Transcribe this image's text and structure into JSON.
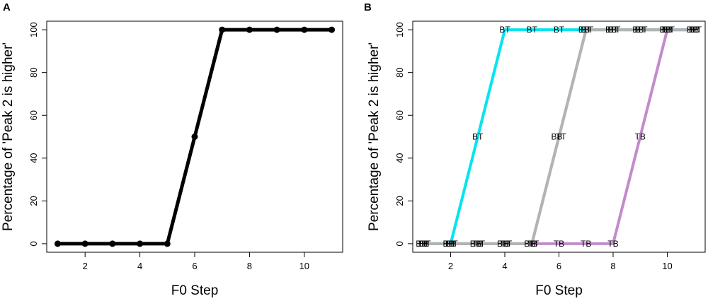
{
  "chart_data": [
    {
      "panel": "A",
      "type": "line",
      "xlabel": "F0 Step",
      "ylabel": "Percentage of 'Peak 2 is higher'",
      "xlim": [
        1,
        11
      ],
      "ylim": [
        0,
        100
      ],
      "xticks": [
        2,
        4,
        6,
        8,
        10
      ],
      "yticks": [
        0,
        20,
        40,
        60,
        80,
        100
      ],
      "grid": false,
      "legend": "none",
      "series": [
        {
          "color": "#000000",
          "marker": "filled-circle",
          "x": [
            1,
            2,
            3,
            4,
            5,
            6,
            7,
            8,
            9,
            10,
            11
          ],
          "y": [
            0,
            0,
            0,
            0,
            0,
            50,
            100,
            100,
            100,
            100,
            100
          ]
        }
      ]
    },
    {
      "panel": "B",
      "type": "line",
      "xlabel": "F0 Step",
      "ylabel": "Percentage of 'Peak 2 is higher'",
      "xlim": [
        1,
        11
      ],
      "ylim": [
        0,
        100
      ],
      "xticks": [
        2,
        4,
        6,
        8,
        10
      ],
      "yticks": [
        0,
        20,
        40,
        60,
        80,
        100
      ],
      "grid": false,
      "legend": "none",
      "series": [
        {
          "point_label": "BB",
          "color": "#b3b3b3",
          "x": [
            1,
            2,
            3,
            4,
            5,
            6,
            7,
            8,
            9,
            10,
            11
          ],
          "y": [
            0,
            0,
            0,
            0,
            0,
            50,
            100,
            100,
            100,
            100,
            100
          ]
        },
        {
          "point_label": "TB",
          "color": "#c38bcc",
          "x": [
            1,
            2,
            3,
            4,
            5,
            6,
            7,
            8,
            9,
            10,
            11
          ],
          "y": [
            0,
            0,
            0,
            0,
            0,
            0,
            0,
            0,
            50,
            100,
            100
          ]
        },
        {
          "point_label": "BT",
          "color": "#00e5ee",
          "x": [
            1,
            2,
            3,
            4,
            5,
            6,
            7,
            8,
            9,
            10,
            11
          ],
          "y": [
            0,
            0,
            50,
            100,
            100,
            100,
            100,
            100,
            100,
            100,
            100
          ]
        },
        {
          "point_label": "TT",
          "color": "#b3b3b3",
          "x": [
            1,
            2,
            3,
            4,
            5,
            6,
            7,
            8,
            9,
            10,
            11
          ],
          "y": [
            0,
            0,
            0,
            0,
            0,
            50,
            100,
            100,
            100,
            100,
            100
          ]
        }
      ]
    }
  ]
}
